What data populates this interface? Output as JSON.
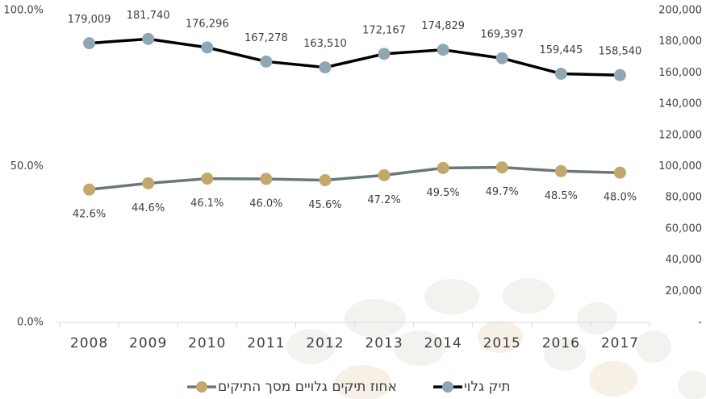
{
  "chart_data": {
    "type": "line",
    "categories": [
      "2008",
      "2009",
      "2010",
      "2011",
      "2012",
      "2013",
      "2014",
      "2015",
      "2016",
      "2017"
    ],
    "ylim": [
      0,
      100
    ],
    "yticks": [
      {
        "value": 0,
        "label": "0.0%"
      },
      {
        "value": 50,
        "label": "50.0%"
      },
      {
        "value": 100,
        "label": "100.0%"
      }
    ],
    "y2lim": [
      0,
      200000
    ],
    "y2ticks": [
      {
        "value": 0,
        "label": "-"
      },
      {
        "value": 20000,
        "label": "20,000"
      },
      {
        "value": 40000,
        "label": "40,000"
      },
      {
        "value": 60000,
        "label": "60,000"
      },
      {
        "value": 80000,
        "label": "80,000"
      },
      {
        "value": 100000,
        "label": "100,000"
      },
      {
        "value": 120000,
        "label": "120,000"
      },
      {
        "value": 140000,
        "label": "140,000"
      },
      {
        "value": 160000,
        "label": "160,000"
      },
      {
        "value": 180000,
        "label": "180,000"
      },
      {
        "value": 200000,
        "label": "200,000"
      }
    ],
    "legend": "bottom",
    "series": [
      {
        "name": "תיק גלוי",
        "axis": "y2",
        "color": "#000000",
        "marker_color": "#8ea7b3",
        "values": [
          179009,
          181740,
          176296,
          167278,
          163510,
          172167,
          174829,
          169397,
          159445,
          158540
        ],
        "value_labels": [
          "179,009",
          "181,740",
          "176,296",
          "167,278",
          "163,510",
          "172,167",
          "174,829",
          "169,397",
          "159,445",
          "158,540"
        ]
      },
      {
        "name": "אחוז תיקים גלויים מסך התיקים",
        "color": "#6b7878",
        "marker_color": "#c2a86c",
        "values": [
          42.6,
          44.6,
          46.1,
          46.0,
          45.6,
          47.2,
          49.5,
          49.7,
          48.5,
          48.0
        ],
        "value_labels": [
          "42.6%",
          "44.6%",
          "46.1%",
          "46.0%",
          "45.6%",
          "47.2%",
          "49.5%",
          "49.7%",
          "48.5%",
          "48.0%"
        ]
      }
    ]
  }
}
